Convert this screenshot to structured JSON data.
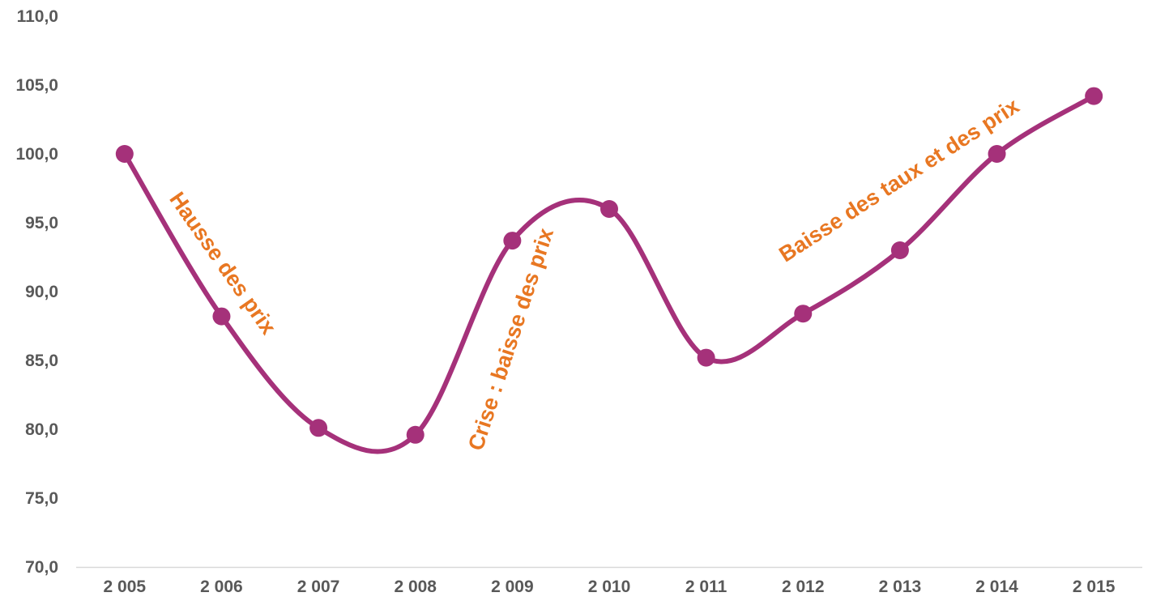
{
  "chart_data": {
    "type": "line",
    "categories": [
      "2 005",
      "2 006",
      "2 007",
      "2 008",
      "2 009",
      "2 010",
      "2 011",
      "2 012",
      "2 013",
      "2 014",
      "2 015"
    ],
    "series": [
      {
        "values": [
          100.0,
          88.2,
          80.1,
          79.6,
          93.7,
          96.0,
          85.2,
          88.4,
          93.0,
          100.0,
          104.2
        ],
        "color": "#A5317A"
      }
    ],
    "title": "",
    "xlabel": "",
    "ylabel": "",
    "ylim": [
      70,
      110
    ],
    "y_ticks": [
      "70,0",
      "75,0",
      "80,0",
      "85,0",
      "90,0",
      "95,0",
      "100,0",
      "105,0",
      "110,0"
    ],
    "grid": false,
    "line_style": "smooth",
    "markers": "circle",
    "annotations": [
      {
        "text": "Hausse des prix",
        "x": "2 006",
        "y": 92.0,
        "color": "#E87722"
      },
      {
        "text": "Crise : baisse des prix",
        "x": "2 009",
        "y": 86.5,
        "color": "#E87722"
      },
      {
        "text": "Baisse des taux et des prix",
        "x": "2 013",
        "y": 98.0,
        "color": "#E87722"
      }
    ]
  }
}
